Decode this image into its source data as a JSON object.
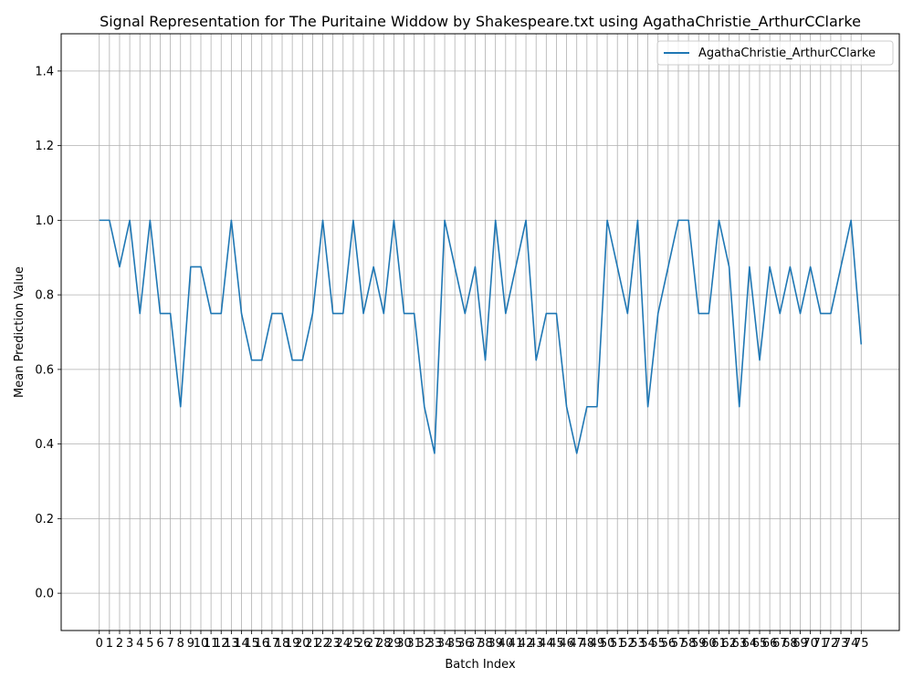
{
  "chart_data": {
    "type": "line",
    "title": "Signal Representation for The Puritaine Widdow by Shakespeare.txt using AgathaChristie_ArthurCClarke",
    "xlabel": "Batch Index",
    "ylabel": "Mean Prediction Value",
    "xlim": [
      -3.75,
      78.75
    ],
    "ylim": [
      -0.1,
      1.5
    ],
    "yticks": [
      0.0,
      0.2,
      0.4,
      0.6,
      0.8,
      1.0,
      1.2,
      1.4
    ],
    "ytick_labels": [
      "0.0",
      "0.2",
      "0.4",
      "0.6",
      "0.8",
      "1.0",
      "1.2",
      "1.4"
    ],
    "xticks": [
      0,
      1,
      2,
      3,
      4,
      5,
      6,
      7,
      8,
      9,
      10,
      11,
      12,
      13,
      14,
      15,
      16,
      17,
      18,
      19,
      20,
      21,
      22,
      23,
      24,
      25,
      26,
      27,
      28,
      29,
      30,
      31,
      32,
      33,
      34,
      35,
      36,
      37,
      38,
      39,
      40,
      41,
      42,
      43,
      44,
      45,
      46,
      47,
      48,
      49,
      50,
      51,
      52,
      53,
      54,
      55,
      56,
      57,
      58,
      59,
      60,
      61,
      62,
      63,
      64,
      65,
      66,
      67,
      68,
      69,
      70,
      71,
      72,
      73,
      74,
      75
    ],
    "xtick_labels": [
      "0",
      "1",
      "2",
      "3",
      "4",
      "5",
      "6",
      "7",
      "8",
      "9",
      "10",
      "11",
      "12",
      "13",
      "14",
      "15",
      "16",
      "17",
      "18",
      "19",
      "20",
      "21",
      "22",
      "23",
      "24",
      "25",
      "26",
      "27",
      "28",
      "29",
      "30",
      "31",
      "32",
      "33",
      "34",
      "35",
      "36",
      "37",
      "38",
      "39",
      "40",
      "41",
      "42",
      "43",
      "44",
      "45",
      "46",
      "47",
      "48",
      "49",
      "50",
      "51",
      "52",
      "53",
      "54",
      "55",
      "56",
      "57",
      "58",
      "59",
      "60",
      "61",
      "62",
      "63",
      "64",
      "65",
      "66",
      "67",
      "68",
      "69",
      "70",
      "71",
      "72",
      "73",
      "74",
      "75"
    ],
    "grid": true,
    "legend_position": "top-right",
    "series": [
      {
        "name": "AgathaChristie_ArthurCClarke",
        "color": "#1f77b4",
        "x": [
          0,
          1,
          2,
          3,
          4,
          5,
          6,
          7,
          8,
          9,
          10,
          11,
          12,
          13,
          14,
          15,
          16,
          17,
          18,
          19,
          20,
          21,
          22,
          23,
          24,
          25,
          26,
          27,
          28,
          29,
          30,
          31,
          32,
          33,
          34,
          35,
          36,
          37,
          38,
          39,
          40,
          41,
          42,
          43,
          44,
          45,
          46,
          47,
          48,
          49,
          50,
          51,
          52,
          53,
          54,
          55,
          56,
          57,
          58,
          59,
          60,
          61,
          62,
          63,
          64,
          65,
          66,
          67,
          68,
          69,
          70,
          71,
          72,
          73,
          74,
          75
        ],
        "values": [
          1.0,
          1.0,
          0.875,
          1.0,
          0.75,
          1.0,
          0.75,
          0.75,
          0.5,
          0.875,
          0.875,
          0.75,
          0.75,
          1.0,
          0.75,
          0.625,
          0.625,
          0.75,
          0.75,
          0.625,
          0.625,
          0.75,
          1.0,
          0.75,
          0.75,
          1.0,
          0.75,
          0.875,
          0.75,
          1.0,
          0.75,
          0.75,
          0.5,
          0.375,
          1.0,
          0.875,
          0.75,
          0.875,
          0.625,
          1.0,
          0.75,
          0.875,
          1.0,
          0.625,
          0.75,
          0.75,
          0.5,
          0.375,
          0.5,
          0.5,
          1.0,
          0.875,
          0.75,
          1.0,
          0.5,
          0.75,
          0.875,
          1.0,
          1.0,
          0.75,
          0.75,
          1.0,
          0.875,
          0.5,
          0.875,
          0.625,
          0.875,
          0.75,
          0.875,
          0.75,
          0.875,
          0.75,
          0.75,
          0.875,
          1.0,
          0.667
        ]
      }
    ]
  }
}
